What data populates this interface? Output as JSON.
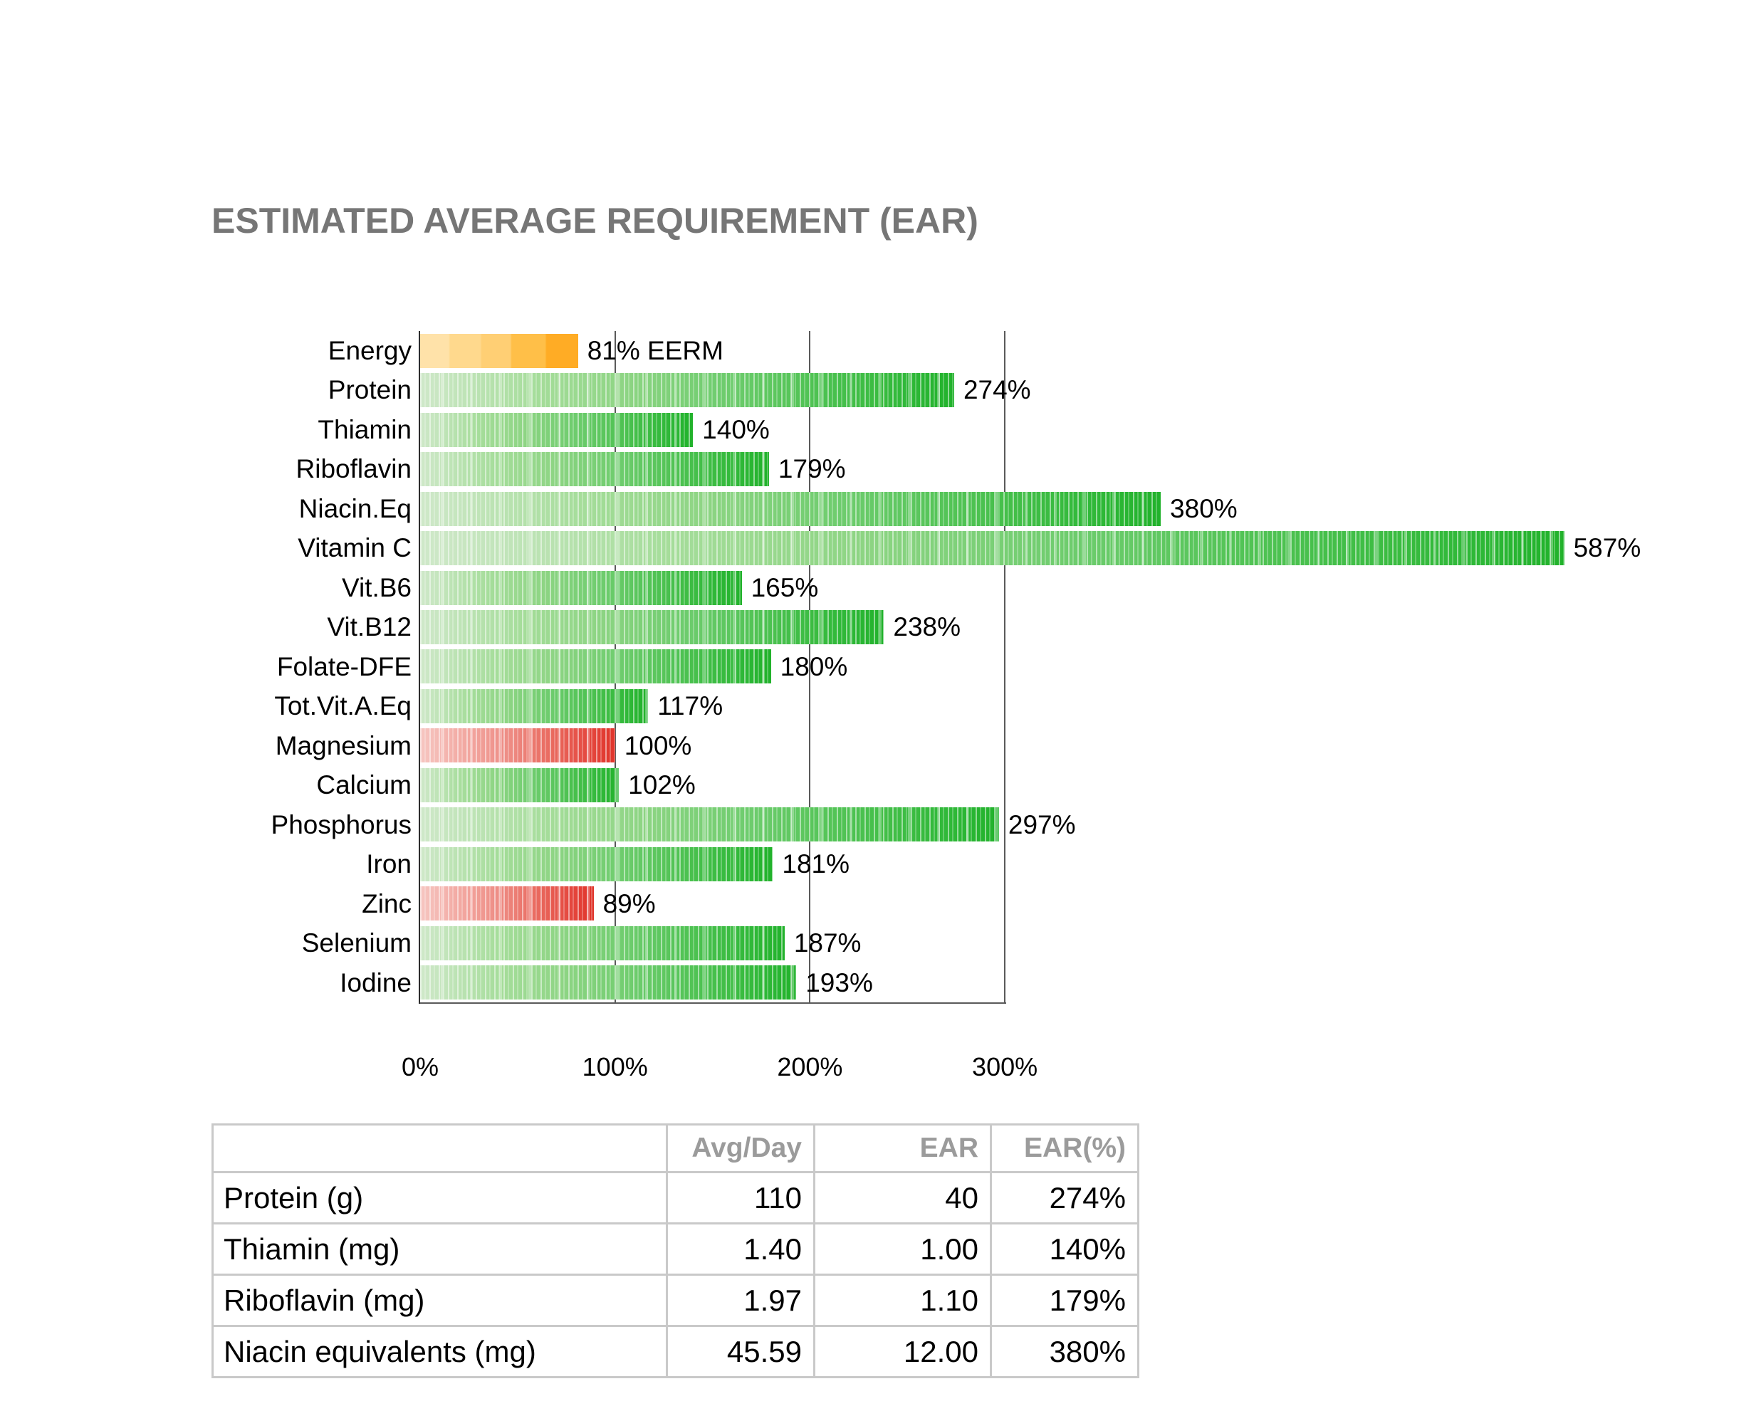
{
  "title": "ESTIMATED AVERAGE REQUIREMENT (EAR)",
  "chart_data": {
    "type": "bar",
    "orientation": "horizontal",
    "title": "ESTIMATED AVERAGE REQUIREMENT (EAR)",
    "categories": [
      "Energy",
      "Protein",
      "Thiamin",
      "Riboflavin",
      "Niacin.Eq",
      "Vitamin C",
      "Vit.B6",
      "Vit.B12",
      "Folate-DFE",
      "Tot.Vit.A.Eq",
      "Magnesium",
      "Calcium",
      "Phosphorus",
      "Iron",
      "Zinc",
      "Selenium",
      "Iodine"
    ],
    "values": [
      81,
      274,
      140,
      179,
      380,
      587,
      165,
      238,
      180,
      117,
      100,
      102,
      297,
      181,
      89,
      187,
      193
    ],
    "data_labels": [
      "81% EERM",
      "274%",
      "140%",
      "179%",
      "380%",
      "587%",
      "165%",
      "238%",
      "180%",
      "117%",
      "100%",
      "102%",
      "297%",
      "181%",
      "89%",
      "187%",
      "193%"
    ],
    "bar_styles": [
      "orange",
      "green",
      "green",
      "green",
      "green",
      "green",
      "green",
      "green",
      "green",
      "green",
      "red",
      "green",
      "green",
      "green",
      "red",
      "green",
      "green"
    ],
    "x_ticks": [
      {
        "label": "0%",
        "pct": 0
      },
      {
        "label": "100%",
        "pct": 100
      },
      {
        "label": "200%",
        "pct": 200
      },
      {
        "label": "300%",
        "pct": 300
      }
    ],
    "xlim": [
      0,
      300
    ],
    "grid": "vertical gridlines at 100%, 200%, 300%; bars may overflow past 300%",
    "legend": "none"
  },
  "colors": {
    "title_text": "#767676",
    "green_bar_light": "#cfe8c9",
    "green_bar_dark": "#21b22b",
    "red_bar_light": "#f6c6c1",
    "red_bar_dark": "#e0342a",
    "orange_bar_light": "#ffe2a9",
    "orange_bar_dark": "#ffac25",
    "gridline": "#5a5a5a",
    "axis_line": "#2e2e2e",
    "table_border": "#c9c9c9",
    "table_header_text": "#9b9b9b"
  },
  "table": {
    "headers": [
      "",
      "Avg/Day",
      "EAR",
      "EAR(%)"
    ],
    "rows": [
      {
        "label": "Protein (g)",
        "avg_day": "110",
        "ear": "40",
        "ear_pct": "274%"
      },
      {
        "label": "Thiamin (mg)",
        "avg_day": "1.40",
        "ear": "1.00",
        "ear_pct": "140%"
      },
      {
        "label": "Riboflavin (mg)",
        "avg_day": "1.97",
        "ear": "1.10",
        "ear_pct": "179%"
      },
      {
        "label": "Niacin equivalents (mg)",
        "avg_day": "45.59",
        "ear": "12.00",
        "ear_pct": "380%"
      }
    ]
  }
}
